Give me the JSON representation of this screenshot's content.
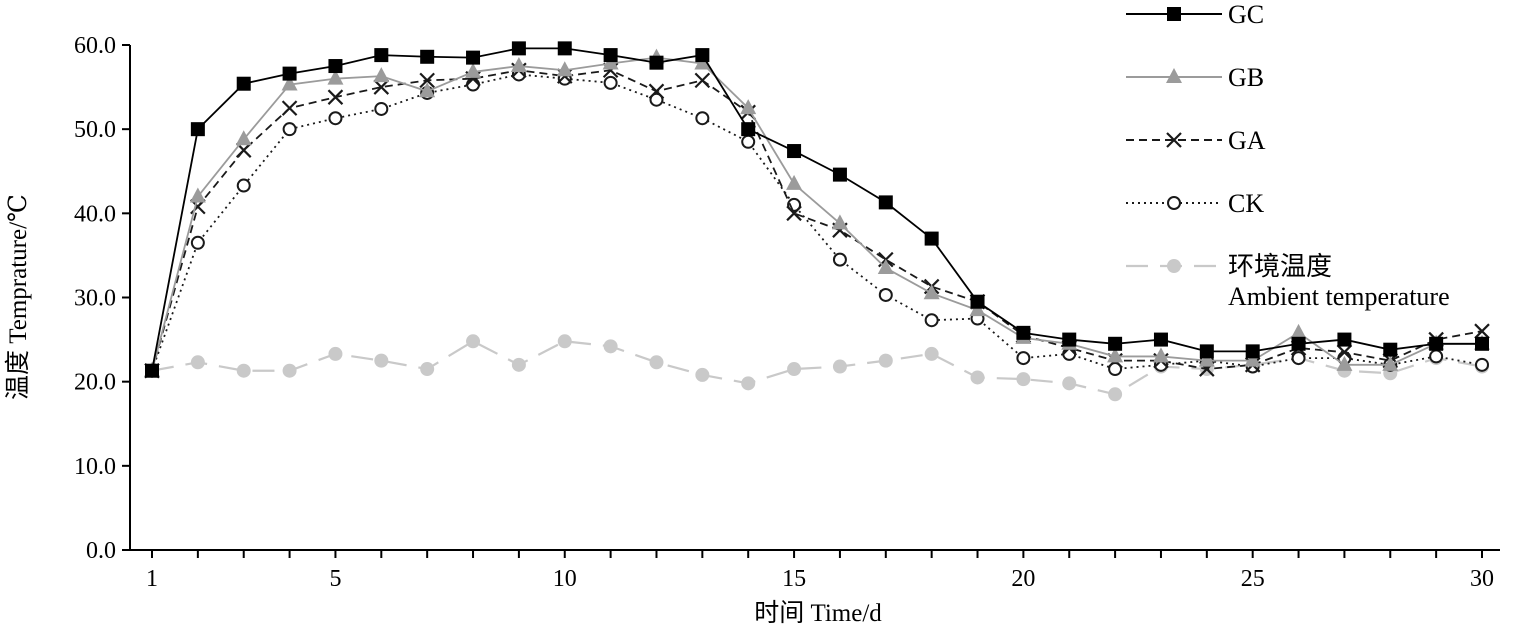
{
  "chart_data": {
    "type": "line",
    "title": "",
    "xlabel": "时间 Time/d",
    "ylabel": "温度 Temprature/℃",
    "xlim": [
      1,
      30
    ],
    "ylim": [
      0,
      60
    ],
    "x_ticks": [
      1,
      5,
      10,
      15,
      20,
      25,
      30
    ],
    "y_ticks": [
      "0.0",
      "10.0",
      "20.0",
      "30.0",
      "40.0",
      "50.0",
      "60.0"
    ],
    "legend_position": "right",
    "x": [
      1,
      2,
      3,
      4,
      5,
      6,
      7,
      8,
      9,
      10,
      11,
      12,
      13,
      14,
      15,
      16,
      17,
      18,
      19,
      20,
      21,
      22,
      23,
      24,
      25,
      26,
      27,
      28,
      29,
      30
    ],
    "series": [
      {
        "name": "GC",
        "color": "#000000",
        "marker": "square",
        "dash": "solid",
        "values": [
          21.3,
          50.0,
          55.4,
          56.6,
          57.5,
          58.8,
          58.6,
          58.5,
          59.6,
          59.6,
          58.8,
          57.9,
          58.8,
          50.0,
          47.4,
          44.6,
          41.3,
          37.0,
          29.5,
          25.8,
          25.0,
          24.5,
          25.0,
          23.6,
          23.6,
          24.5,
          25.0,
          23.8,
          24.5,
          24.5
        ]
      },
      {
        "name": "GB",
        "color": "#9b9b9b",
        "marker": "triangle",
        "dash": "solid",
        "values": [
          21.3,
          42.0,
          48.8,
          55.3,
          56.0,
          56.3,
          54.5,
          56.8,
          57.5,
          57.0,
          57.8,
          58.5,
          57.8,
          52.5,
          43.5,
          38.8,
          33.5,
          30.5,
          28.5,
          25.2,
          24.5,
          23.0,
          23.0,
          22.5,
          22.5,
          25.8,
          22.0,
          22.0,
          24.5,
          24.5
        ]
      },
      {
        "name": "GA",
        "color": "#1a1a1a",
        "marker": "x",
        "dash": "dashed",
        "values": [
          21.3,
          40.8,
          47.5,
          52.5,
          53.8,
          55.0,
          55.8,
          56.0,
          57.0,
          56.3,
          57.0,
          54.5,
          55.8,
          52.0,
          40.0,
          38.0,
          34.5,
          31.3,
          29.5,
          25.5,
          24.0,
          22.5,
          22.5,
          21.5,
          22.0,
          24.0,
          23.5,
          22.5,
          25.0,
          26.0
        ]
      },
      {
        "name": "CK",
        "color": "#1a1a1a",
        "marker": "circle-open",
        "dash": "dotted",
        "values": [
          21.3,
          36.5,
          43.3,
          50.0,
          51.3,
          52.4,
          54.3,
          55.3,
          56.5,
          56.0,
          55.5,
          53.5,
          51.3,
          48.5,
          41.0,
          34.5,
          30.3,
          27.3,
          27.5,
          22.8,
          23.3,
          21.5,
          22.0,
          22.5,
          21.8,
          22.8,
          22.8,
          22.0,
          23.0,
          22.0
        ]
      },
      {
        "name": "环境温度\nAmbient temperature",
        "color": "#c9c9c9",
        "marker": "circle-filled",
        "dash": "long-dash",
        "values": [
          21.3,
          22.3,
          21.3,
          21.3,
          23.3,
          22.5,
          21.5,
          24.8,
          22.0,
          24.8,
          24.2,
          22.3,
          20.8,
          19.8,
          21.5,
          21.8,
          22.5,
          23.3,
          20.5,
          20.3,
          19.8,
          18.5,
          21.8,
          21.5,
          22.0,
          22.8,
          21.3,
          21.0,
          22.8,
          21.8
        ]
      }
    ],
    "legend": [
      {
        "name": "GC"
      },
      {
        "name": "GB"
      },
      {
        "name": "GA"
      },
      {
        "name": "CK"
      },
      {
        "name": "环境温度",
        "name2": "Ambient temperature"
      }
    ]
  }
}
